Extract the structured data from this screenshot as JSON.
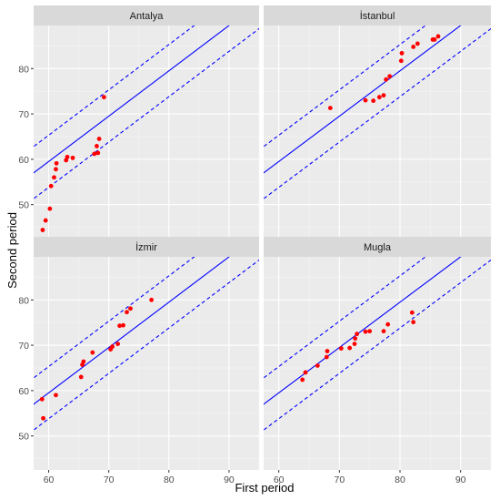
{
  "figure": {
    "xlabel": "First period",
    "ylabel": "Second period"
  },
  "colors": {
    "panel_bg": "#ebebeb",
    "strip_bg": "#d9d9d9",
    "grid_major": "#ffffff",
    "line": "#0000ff",
    "point": "#ff0000",
    "axis_text": "#4d4d4d"
  },
  "chart_data": {
    "type": "scatter",
    "layout": "facet 2x2",
    "xlim": [
      57.5,
      95.0
    ],
    "ylim": [
      42.5,
      89.5
    ],
    "xticks": [
      60,
      70,
      80,
      90
    ],
    "yticks": [
      50,
      60,
      70,
      80
    ],
    "grid": true,
    "reference_lines": [
      {
        "kind": "solid",
        "slope": 1,
        "intercept": -0.5
      },
      {
        "kind": "dashed",
        "slope": 1,
        "intercept": 5.3
      },
      {
        "kind": "dashed",
        "slope": 1,
        "intercept": -6.2
      }
    ],
    "panels": [
      {
        "title": "Antalya",
        "points": [
          [
            59.0,
            44.4
          ],
          [
            59.5,
            46.5
          ],
          [
            60.2,
            49.1
          ],
          [
            60.4,
            54.1
          ],
          [
            60.9,
            56.0
          ],
          [
            61.2,
            57.8
          ],
          [
            61.3,
            59.1
          ],
          [
            62.9,
            59.8
          ],
          [
            63.1,
            60.5
          ],
          [
            64.0,
            60.3
          ],
          [
            67.6,
            61.2
          ],
          [
            68.0,
            62.9
          ],
          [
            68.2,
            61.4
          ],
          [
            68.4,
            64.5
          ],
          [
            69.2,
            73.7
          ]
        ]
      },
      {
        "title": "İstanbul",
        "points": [
          [
            68.5,
            71.3
          ],
          [
            74.3,
            73.0
          ],
          [
            75.6,
            72.9
          ],
          [
            76.6,
            73.7
          ],
          [
            77.3,
            74.1
          ],
          [
            77.7,
            77.6
          ],
          [
            78.3,
            78.3
          ],
          [
            80.2,
            81.7
          ],
          [
            80.3,
            83.4
          ],
          [
            82.2,
            84.8
          ],
          [
            82.9,
            85.5
          ],
          [
            85.4,
            86.4
          ],
          [
            85.7,
            86.4
          ],
          [
            86.3,
            87.1
          ]
        ]
      },
      {
        "title": "İzmir",
        "points": [
          [
            58.9,
            58.1
          ],
          [
            59.1,
            53.9
          ],
          [
            61.2,
            59.0
          ],
          [
            65.4,
            63.0
          ],
          [
            65.6,
            65.7
          ],
          [
            65.8,
            66.4
          ],
          [
            67.3,
            68.4
          ],
          [
            70.3,
            69.1
          ],
          [
            70.6,
            69.7
          ],
          [
            71.5,
            70.3
          ],
          [
            71.8,
            74.3
          ],
          [
            72.4,
            74.4
          ],
          [
            73.0,
            77.3
          ],
          [
            73.6,
            78.1
          ],
          [
            77.1,
            80.0
          ]
        ]
      },
      {
        "title": "Mugla",
        "points": [
          [
            63.9,
            62.4
          ],
          [
            64.4,
            64.0
          ],
          [
            66.4,
            65.5
          ],
          [
            67.9,
            67.4
          ],
          [
            68.0,
            68.7
          ],
          [
            70.3,
            69.3
          ],
          [
            71.7,
            69.4
          ],
          [
            72.5,
            70.3
          ],
          [
            72.6,
            71.5
          ],
          [
            72.9,
            72.5
          ],
          [
            74.3,
            73.0
          ],
          [
            75.0,
            73.1
          ],
          [
            77.3,
            73.1
          ],
          [
            78.0,
            74.6
          ],
          [
            82.0,
            77.2
          ],
          [
            82.2,
            75.1
          ]
        ]
      }
    ]
  }
}
